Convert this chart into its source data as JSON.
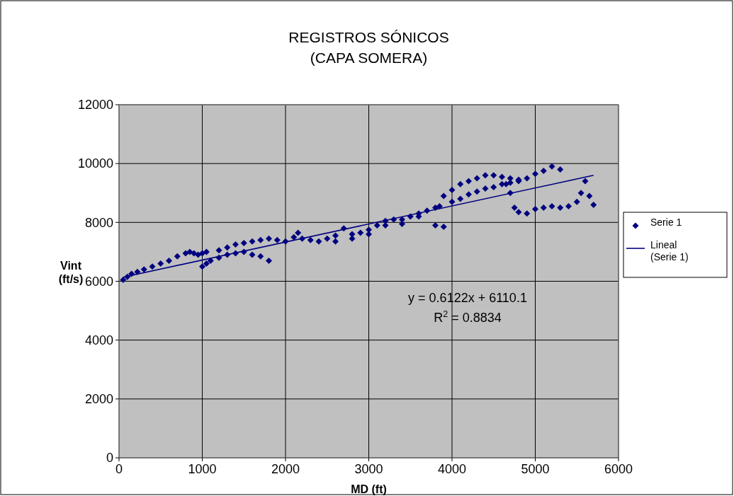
{
  "chart_data": {
    "type": "scatter",
    "title": "REGISTROS SÓNICOS\n(CAPA SOMERA)",
    "xlabel": "MD (ft)",
    "ylabel": "Vint\n(ft/s)",
    "xlim": [
      0,
      6000
    ],
    "ylim": [
      0,
      12000
    ],
    "xticks": [
      0,
      1000,
      2000,
      3000,
      4000,
      5000,
      6000
    ],
    "yticks": [
      0,
      2000,
      4000,
      6000,
      8000,
      10000,
      12000
    ],
    "grid": true,
    "legend": "right",
    "series": [
      {
        "name": "Serie 1",
        "marker": "diamond",
        "color": "#000080",
        "x": [
          50,
          100,
          150,
          220,
          300,
          400,
          500,
          600,
          700,
          800,
          850,
          900,
          950,
          1000,
          1050,
          1000,
          1050,
          1100,
          1200,
          1300,
          1400,
          1500,
          1600,
          1700,
          1800,
          1200,
          1300,
          1400,
          1500,
          1600,
          1700,
          1800,
          1900,
          2000,
          2100,
          2150,
          2200,
          2300,
          2400,
          2500,
          2600,
          2700,
          2800,
          2900,
          3000,
          3100,
          3200,
          3300,
          3400,
          3500,
          3600,
          3700,
          3800,
          3850,
          2600,
          2800,
          3000,
          3200,
          3400,
          3600,
          3800,
          3900,
          4000,
          4100,
          4200,
          4300,
          4400,
          4500,
          4600,
          4700,
          4800,
          4900,
          5000,
          5100,
          5200,
          5300,
          3900,
          4000,
          4100,
          4200,
          4300,
          4400,
          4500,
          4600,
          4700,
          4800,
          4650,
          4700,
          4750,
          4800,
          4900,
          5000,
          5100,
          5200,
          5300,
          5400,
          5500,
          5550,
          5600,
          5650,
          5700
        ],
        "values": [
          6050,
          6150,
          6250,
          6320,
          6400,
          6500,
          6600,
          6700,
          6850,
          6950,
          7000,
          6950,
          6900,
          6950,
          7000,
          6500,
          6600,
          6700,
          6800,
          6900,
          6950,
          7000,
          6900,
          6850,
          6700,
          7050,
          7150,
          7250,
          7300,
          7350,
          7400,
          7450,
          7400,
          7350,
          7500,
          7650,
          7450,
          7400,
          7350,
          7450,
          7550,
          7800,
          7600,
          7650,
          7750,
          7900,
          8050,
          8100,
          8100,
          8200,
          8300,
          8400,
          8500,
          8550,
          7350,
          7450,
          7600,
          7900,
          7950,
          8200,
          7900,
          7850,
          8700,
          8800,
          8950,
          9050,
          9150,
          9200,
          9300,
          9350,
          9400,
          9500,
          9650,
          9750,
          9900,
          9800,
          8900,
          9100,
          9300,
          9400,
          9500,
          9600,
          9600,
          9550,
          9500,
          9450,
          9300,
          9000,
          8500,
          8350,
          8300,
          8450,
          8500,
          8550,
          8500,
          8550,
          8700,
          9000,
          9400,
          8900,
          8600
        ]
      },
      {
        "name": "Lineal (Serie 1)",
        "type": "line",
        "color": "#000080",
        "x": [
          50,
          5700
        ],
        "values": [
          6140,
          9600
        ]
      }
    ],
    "annotations": [
      "y = 0.6122x + 6110.1",
      "R$^{2}$ = 0.8834"
    ]
  }
}
